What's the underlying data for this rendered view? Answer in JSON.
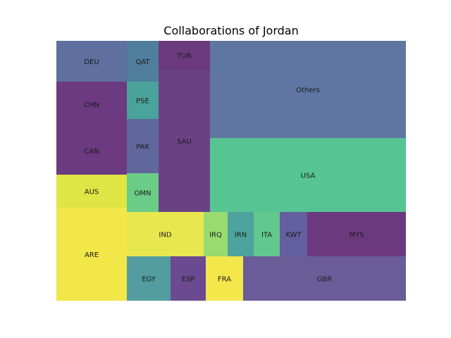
{
  "chart_data": {
    "type": "treemap",
    "title": "Collaborations of Jordan",
    "cells": [
      {
        "label": "DEU",
        "color": "#5f6f9f"
      },
      {
        "label": "CHN",
        "color": "#6b3a80"
      },
      {
        "label": "CAN",
        "color": "#6b3a80"
      },
      {
        "label": "AUS",
        "color": "#dfe545"
      },
      {
        "label": "ARE",
        "color": "#f1e748"
      },
      {
        "label": "QAT",
        "color": "#4f7f9c"
      },
      {
        "label": "PSE",
        "color": "#4aa39b"
      },
      {
        "label": "PAK",
        "color": "#60679c"
      },
      {
        "label": "OMN",
        "color": "#6bcc87"
      },
      {
        "label": "TUR",
        "color": "#6b3a7e"
      },
      {
        "label": "SAU",
        "color": "#6b4185"
      },
      {
        "label": "Others",
        "color": "#5f76a2"
      },
      {
        "label": "USA",
        "color": "#57c493"
      },
      {
        "label": "IND",
        "color": "#e9e74f"
      },
      {
        "label": "IRQ",
        "color": "#98db6f"
      },
      {
        "label": "IRN",
        "color": "#4ea39f"
      },
      {
        "label": "ITA",
        "color": "#62c88d"
      },
      {
        "label": "KWT",
        "color": "#645f9f"
      },
      {
        "label": "MYS",
        "color": "#6b3a7e"
      },
      {
        "label": "EGY",
        "color": "#539c9f"
      },
      {
        "label": "ESP",
        "color": "#6b4a90"
      },
      {
        "label": "FRA",
        "color": "#f4e74b"
      },
      {
        "label": "GBR",
        "color": "#6a5c98"
      }
    ]
  }
}
